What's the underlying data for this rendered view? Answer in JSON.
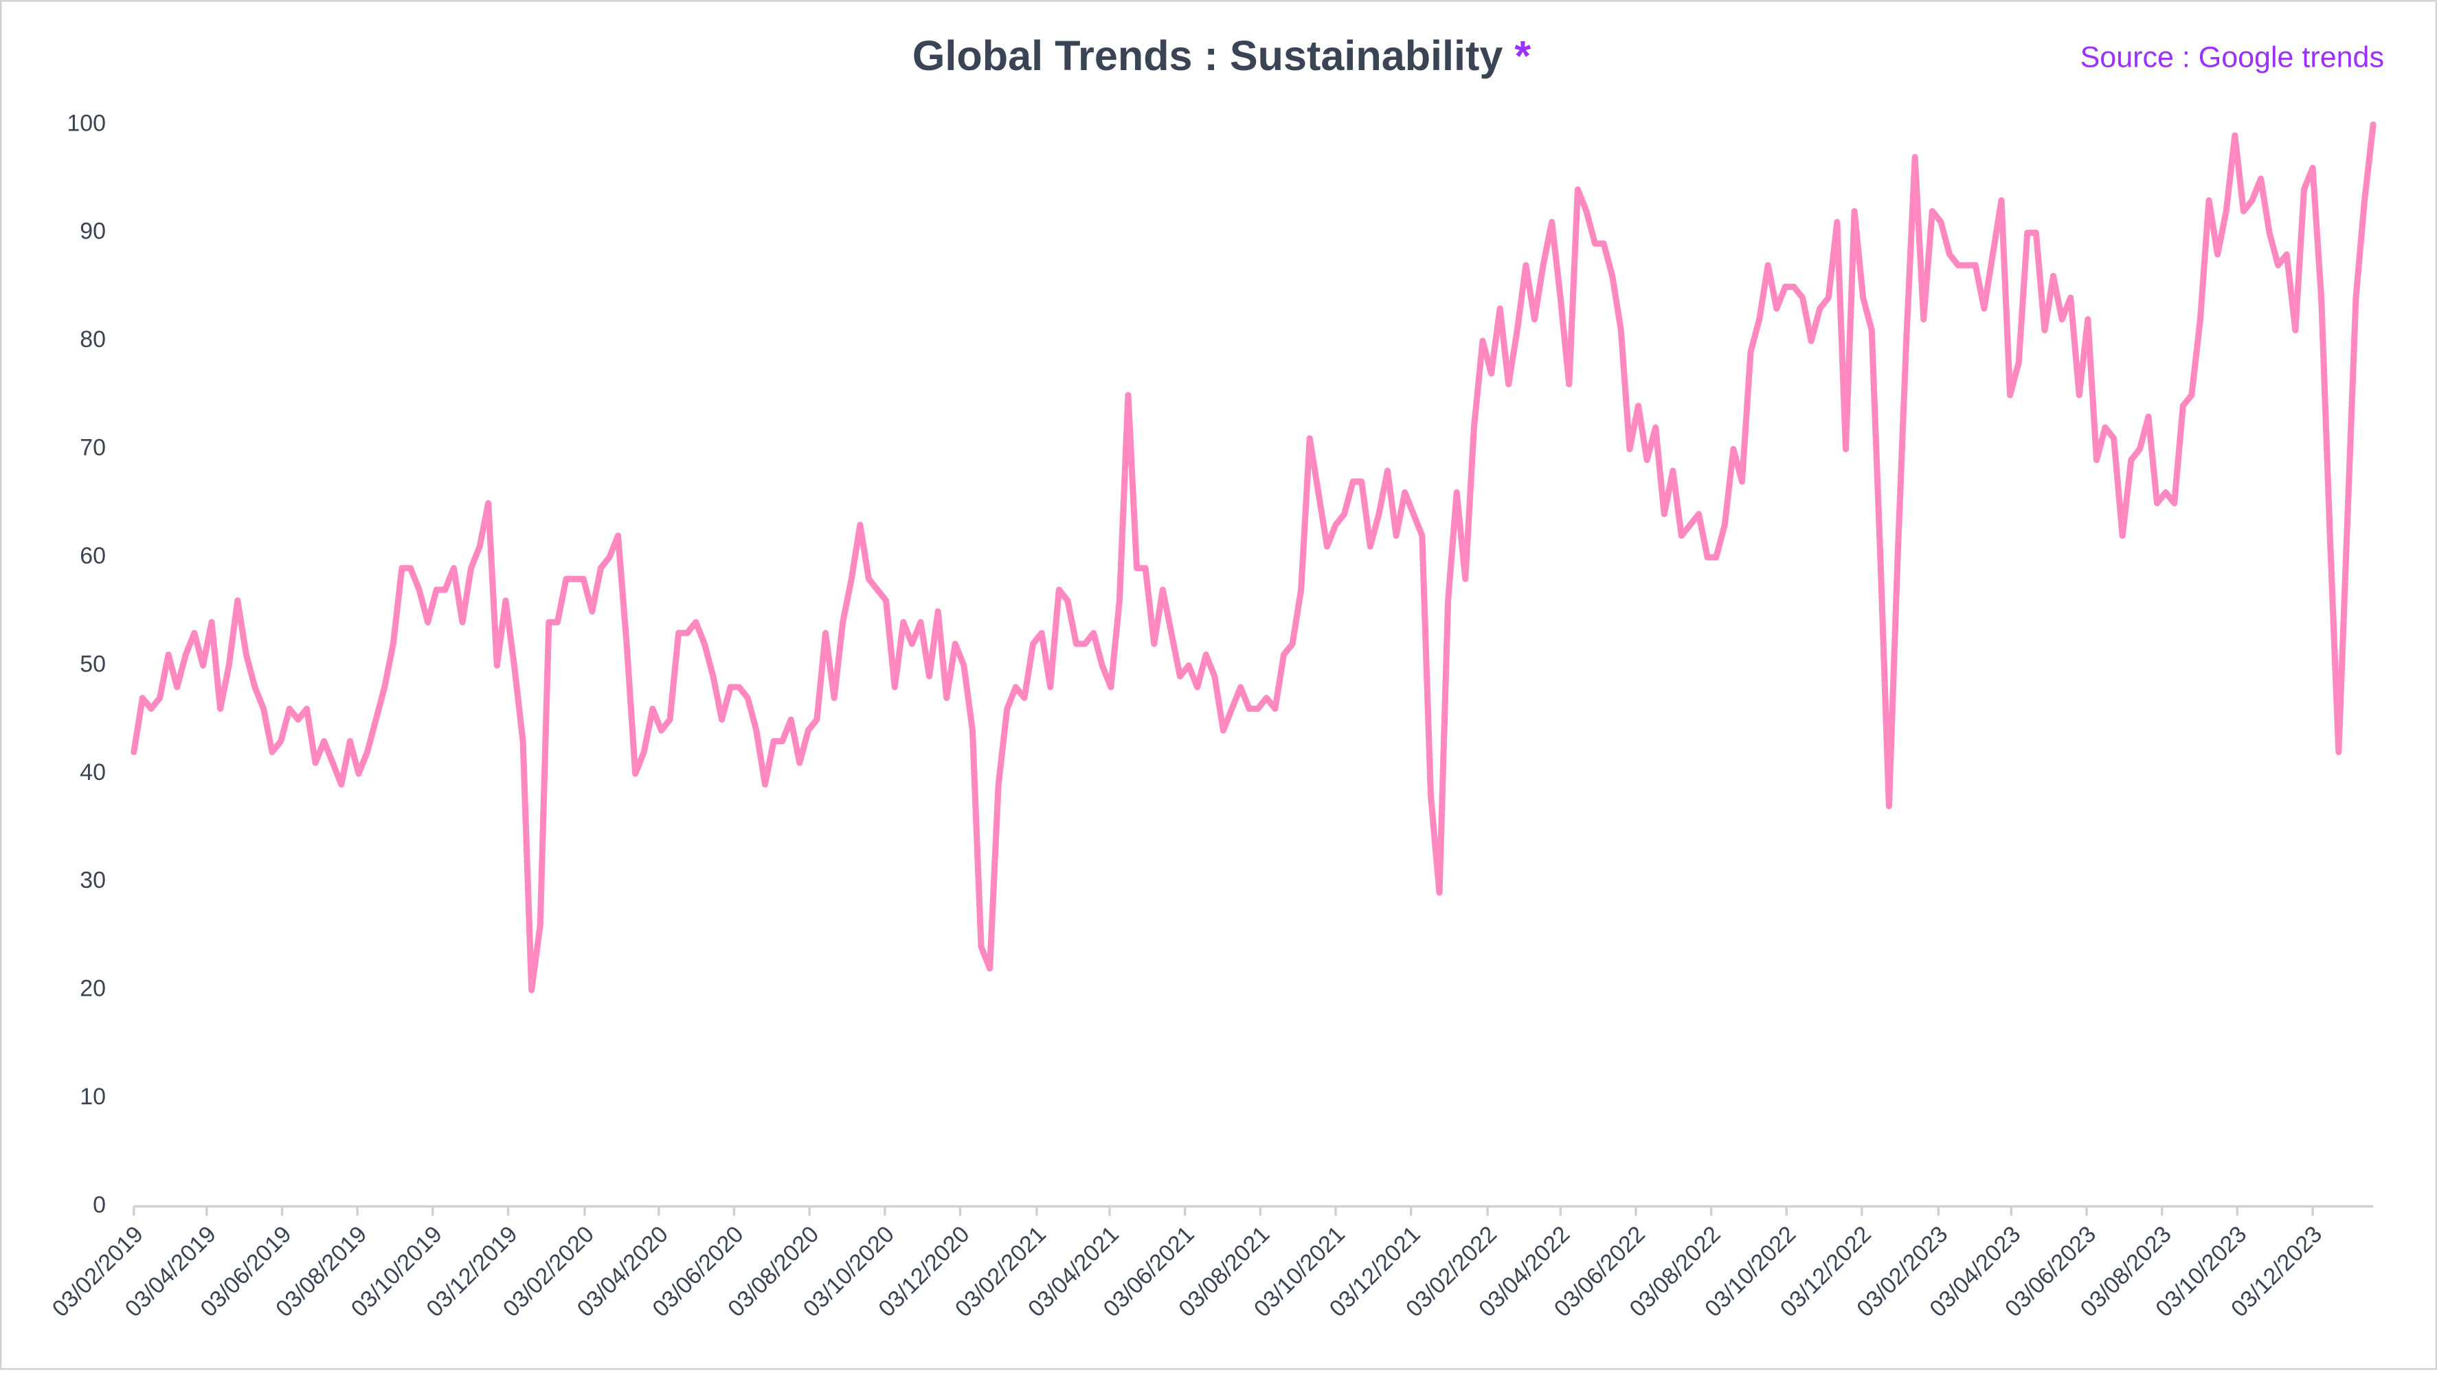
{
  "chart_data": {
    "type": "line",
    "title": "Global Trends : Sustainability",
    "title_mark": "*",
    "source": "Source : Google trends",
    "color": "#ff88c0",
    "grid": false,
    "x": [
      "03/02/2019",
      "10/02/2019",
      "17/02/2019",
      "24/02/2019",
      "03/03/2019",
      "10/03/2019",
      "17/03/2019",
      "24/03/2019",
      "31/03/2019",
      "07/04/2019",
      "14/04/2019",
      "21/04/2019",
      "28/04/2019",
      "05/05/2019",
      "12/05/2019",
      "19/05/2019",
      "26/05/2019",
      "02/06/2019",
      "09/06/2019",
      "16/06/2019",
      "23/06/2019",
      "30/06/2019",
      "07/07/2019",
      "14/07/2019",
      "21/07/2019",
      "28/07/2019",
      "04/08/2019",
      "11/08/2019",
      "18/08/2019",
      "25/08/2019",
      "01/09/2019",
      "08/09/2019",
      "15/09/2019",
      "22/09/2019",
      "29/09/2019",
      "06/10/2019",
      "13/10/2019",
      "20/10/2019",
      "27/10/2019",
      "03/11/2019",
      "10/11/2019",
      "17/11/2019",
      "24/11/2019",
      "01/12/2019",
      "08/12/2019",
      "15/12/2019",
      "22/12/2019",
      "29/12/2019",
      "05/01/2020",
      "12/01/2020",
      "19/01/2020",
      "26/01/2020",
      "02/02/2020",
      "09/02/2020",
      "16/02/2020",
      "23/02/2020",
      "01/03/2020",
      "08/03/2020",
      "15/03/2020",
      "22/03/2020",
      "29/03/2020",
      "05/04/2020",
      "12/04/2020",
      "19/04/2020",
      "26/04/2020",
      "03/05/2020",
      "10/05/2020",
      "17/05/2020",
      "24/05/2020",
      "31/05/2020",
      "07/06/2020",
      "14/06/2020",
      "21/06/2020",
      "28/06/2020",
      "05/07/2020",
      "12/07/2020",
      "19/07/2020",
      "26/07/2020",
      "02/08/2020",
      "09/08/2020",
      "16/08/2020",
      "23/08/2020",
      "30/08/2020",
      "06/09/2020",
      "13/09/2020",
      "20/09/2020",
      "27/09/2020",
      "04/10/2020",
      "11/10/2020",
      "18/10/2020",
      "25/10/2020",
      "01/11/2020",
      "08/11/2020",
      "15/11/2020",
      "22/11/2020",
      "29/11/2020",
      "06/12/2020",
      "13/12/2020",
      "20/12/2020",
      "27/12/2020",
      "03/01/2021",
      "10/01/2021",
      "17/01/2021",
      "24/01/2021",
      "31/01/2021",
      "07/02/2021",
      "14/02/2021",
      "21/02/2021",
      "28/02/2021",
      "07/03/2021",
      "14/03/2021",
      "21/03/2021",
      "28/03/2021",
      "04/04/2021",
      "11/04/2021",
      "18/04/2021",
      "25/04/2021",
      "02/05/2021",
      "09/05/2021",
      "16/05/2021",
      "23/05/2021",
      "30/05/2021",
      "06/06/2021",
      "13/06/2021",
      "20/06/2021",
      "27/06/2021",
      "04/07/2021",
      "11/07/2021",
      "18/07/2021",
      "25/07/2021",
      "01/08/2021",
      "08/08/2021",
      "15/08/2021",
      "22/08/2021",
      "29/08/2021",
      "05/09/2021",
      "12/09/2021",
      "19/09/2021",
      "26/09/2021",
      "03/10/2021",
      "10/10/2021",
      "17/10/2021",
      "24/10/2021",
      "31/10/2021",
      "07/11/2021",
      "14/11/2021",
      "21/11/2021",
      "28/11/2021",
      "05/12/2021",
      "12/12/2021",
      "19/12/2021",
      "26/12/2021",
      "02/01/2022",
      "09/01/2022",
      "16/01/2022",
      "23/01/2022",
      "30/01/2022",
      "06/02/2022",
      "13/02/2022",
      "20/02/2022",
      "27/02/2022",
      "06/03/2022",
      "13/03/2022",
      "20/03/2022",
      "27/03/2022",
      "03/04/2022",
      "10/04/2022",
      "17/04/2022",
      "24/04/2022",
      "01/05/2022",
      "08/05/2022",
      "15/05/2022",
      "22/05/2022",
      "29/05/2022",
      "05/06/2022",
      "12/06/2022",
      "19/06/2022",
      "26/06/2022",
      "03/07/2022",
      "10/07/2022",
      "17/07/2022",
      "24/07/2022",
      "31/07/2022",
      "07/08/2022",
      "14/08/2022",
      "21/08/2022",
      "28/08/2022",
      "04/09/2022",
      "11/09/2022",
      "18/09/2022",
      "25/09/2022",
      "02/10/2022",
      "09/10/2022",
      "16/10/2022",
      "23/10/2022",
      "30/10/2022",
      "06/11/2022",
      "13/11/2022",
      "20/11/2022",
      "27/11/2022",
      "04/12/2022",
      "11/12/2022",
      "18/12/2022",
      "25/12/2022",
      "01/01/2023",
      "08/01/2023",
      "15/01/2023",
      "22/01/2023",
      "29/01/2023",
      "05/02/2023",
      "12/02/2023",
      "19/02/2023",
      "26/02/2023",
      "05/03/2023",
      "12/03/2023",
      "19/03/2023",
      "26/03/2023",
      "02/04/2023",
      "09/04/2023",
      "16/04/2023",
      "23/04/2023",
      "30/04/2023",
      "07/05/2023",
      "14/05/2023",
      "21/05/2023",
      "28/05/2023",
      "04/06/2023",
      "11/06/2023",
      "18/06/2023",
      "25/06/2023",
      "02/07/2023",
      "09/07/2023",
      "16/07/2023",
      "23/07/2023",
      "30/07/2023",
      "06/08/2023",
      "13/08/2023",
      "20/08/2023",
      "27/08/2023",
      "03/09/2023",
      "10/09/2023",
      "17/09/2023",
      "24/09/2023",
      "01/10/2023",
      "08/10/2023",
      "15/10/2023",
      "22/10/2023",
      "29/10/2023",
      "05/11/2023",
      "12/11/2023",
      "19/11/2023",
      "26/11/2023",
      "03/12/2023",
      "10/12/2023",
      "17/12/2023",
      "24/12/2023",
      "31/12/2023",
      "07/01/2024",
      "14/01/2024",
      "21/01/2024"
    ],
    "values": [
      42,
      47,
      46,
      47,
      51,
      48,
      51,
      53,
      50,
      54,
      46,
      50,
      56,
      51,
      48,
      46,
      42,
      43,
      46,
      45,
      46,
      41,
      43,
      41,
      39,
      43,
      40,
      42,
      45,
      48,
      52,
      59,
      59,
      57,
      54,
      57,
      57,
      59,
      54,
      59,
      61,
      65,
      50,
      56,
      50,
      43,
      20,
      26,
      54,
      54,
      58,
      58,
      58,
      55,
      59,
      60,
      62,
      52,
      40,
      42,
      46,
      44,
      45,
      53,
      53,
      54,
      52,
      49,
      45,
      48,
      48,
      47,
      44,
      39,
      43,
      43,
      45,
      41,
      44,
      45,
      53,
      47,
      54,
      58,
      63,
      58,
      57,
      56,
      48,
      54,
      52,
      54,
      49,
      55,
      47,
      52,
      50,
      44,
      24,
      22,
      39,
      46,
      48,
      47,
      52,
      53,
      48,
      57,
      56,
      52,
      52,
      53,
      50,
      48,
      56,
      75,
      59,
      59,
      52,
      57,
      53,
      49,
      50,
      48,
      51,
      49,
      44,
      46,
      48,
      46,
      46,
      47,
      46,
      51,
      52,
      57,
      71,
      66,
      61,
      63,
      64,
      67,
      67,
      61,
      64,
      68,
      62,
      66,
      64,
      62,
      38,
      29,
      56,
      66,
      58,
      72,
      80,
      77,
      83,
      76,
      81,
      87,
      82,
      87,
      91,
      84,
      76,
      94,
      92,
      89,
      89,
      86,
      81,
      70,
      74,
      69,
      72,
      64,
      68,
      62,
      63,
      64,
      60,
      60,
      63,
      70,
      67,
      79,
      82,
      87,
      83,
      85,
      85,
      84,
      80,
      83,
      84,
      91,
      70,
      92,
      84,
      81,
      60,
      37,
      60,
      80,
      97,
      82,
      92,
      91,
      88,
      87,
      87,
      87,
      83,
      88,
      93,
      75,
      78,
      90,
      90,
      81,
      86,
      82,
      84,
      75,
      82,
      69,
      72,
      71,
      62,
      69,
      70,
      73,
      65,
      66,
      65,
      74,
      75,
      82,
      93,
      88,
      92,
      99,
      92,
      93,
      95,
      90,
      87,
      88,
      81,
      94,
      96,
      84,
      62,
      42,
      63,
      84,
      93,
      100
    ],
    "xlim": [
      "03/02/2019",
      "21/01/2024"
    ],
    "xticks": [
      "03/02/2019",
      "03/04/2019",
      "03/06/2019",
      "03/08/2019",
      "03/10/2019",
      "03/12/2019",
      "03/02/2020",
      "03/04/2020",
      "03/06/2020",
      "03/08/2020",
      "03/10/2020",
      "03/12/2020",
      "03/02/2021",
      "03/04/2021",
      "03/06/2021",
      "03/08/2021",
      "03/10/2021",
      "03/12/2021",
      "03/02/2022",
      "03/04/2022",
      "03/06/2022",
      "03/08/2022",
      "03/10/2022",
      "03/12/2022",
      "03/02/2023",
      "03/04/2023",
      "03/06/2023",
      "03/08/2023",
      "03/10/2023",
      "03/12/2023"
    ],
    "ylim": [
      0,
      100
    ],
    "yticks": [
      0,
      10,
      20,
      30,
      40,
      50,
      60,
      70,
      80,
      90,
      100
    ]
  }
}
